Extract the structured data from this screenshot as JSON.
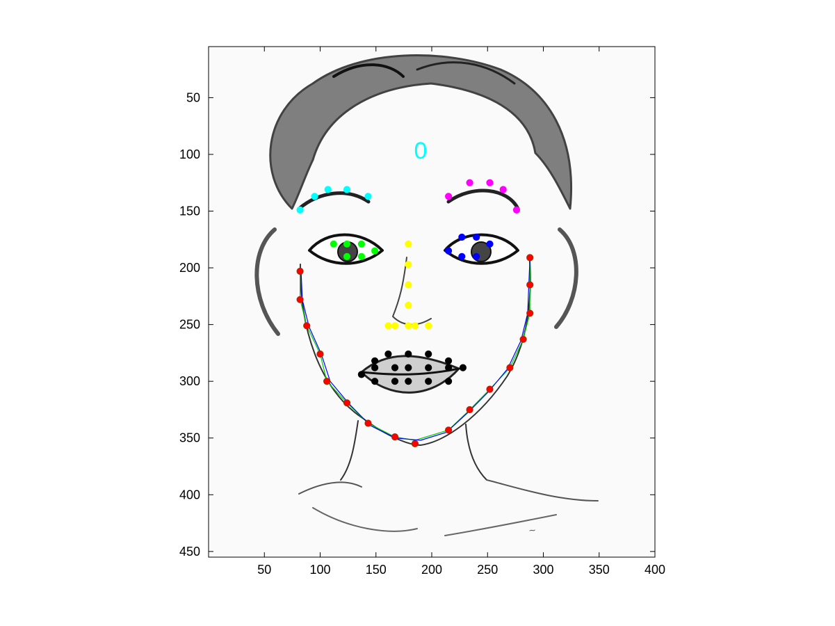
{
  "chart_data": {
    "type": "scatter",
    "title": "",
    "xlabel": "",
    "ylabel": "",
    "xlim": [
      0,
      400
    ],
    "ylim": [
      455,
      5
    ],
    "y_axis_reversed": true,
    "grid": false,
    "legend": "none",
    "background_image": "sketch-of-female-face-portrait",
    "x_ticks": [
      50,
      100,
      150,
      200,
      250,
      300,
      350,
      400
    ],
    "y_ticks": [
      50,
      100,
      150,
      200,
      250,
      300,
      350,
      400,
      450
    ],
    "annotations": [
      {
        "text": "0",
        "x": 190,
        "y": 97,
        "color": "#00ffff"
      }
    ],
    "series": [
      {
        "color": "#00ffff",
        "marker": "dot",
        "points": [
          [
            82,
            149
          ],
          [
            95,
            137
          ],
          [
            107,
            131
          ],
          [
            124,
            131
          ],
          [
            143,
            137
          ]
        ]
      },
      {
        "color": "#ff00ff",
        "marker": "dot",
        "points": [
          [
            215,
            137
          ],
          [
            234,
            125
          ],
          [
            252,
            125
          ],
          [
            264,
            131
          ],
          [
            276,
            149
          ]
        ]
      },
      {
        "color": "#00ff00",
        "marker": "dot",
        "points": [
          [
            112,
            179
          ],
          [
            124,
            179
          ],
          [
            137,
            179
          ],
          [
            149,
            185
          ],
          [
            137,
            190
          ],
          [
            124,
            190
          ]
        ]
      },
      {
        "color": "#0000ff",
        "marker": "dot",
        "points": [
          [
            215,
            185
          ],
          [
            227,
            173
          ],
          [
            240,
            173
          ],
          [
            252,
            179
          ],
          [
            240,
            190
          ],
          [
            227,
            190
          ]
        ]
      },
      {
        "color": "#ffff00",
        "marker": "dot",
        "points": [
          [
            179,
            179
          ],
          [
            179,
            197
          ],
          [
            179,
            215
          ],
          [
            179,
            233
          ],
          [
            161,
            251
          ],
          [
            167,
            251
          ],
          [
            179,
            251
          ],
          [
            185,
            251
          ],
          [
            197,
            251
          ]
        ]
      },
      {
        "color": "#000000",
        "marker": "dot",
        "points": [
          [
            137,
            294
          ],
          [
            149,
            282
          ],
          [
            161,
            276
          ],
          [
            179,
            276
          ],
          [
            197,
            276
          ],
          [
            215,
            282
          ],
          [
            228,
            288
          ],
          [
            215,
            300
          ],
          [
            197,
            300
          ],
          [
            179,
            300
          ],
          [
            167,
            300
          ],
          [
            149,
            300
          ],
          [
            149,
            288
          ],
          [
            167,
            288
          ],
          [
            179,
            288
          ],
          [
            197,
            288
          ],
          [
            215,
            288
          ]
        ]
      },
      {
        "color": "#ff0000",
        "marker": "dot",
        "points": [
          [
            82,
            203
          ],
          [
            82,
            228
          ],
          [
            88,
            251
          ],
          [
            100,
            276
          ],
          [
            106,
            300
          ],
          [
            124,
            319
          ],
          [
            143,
            337
          ],
          [
            167,
            349
          ],
          [
            185,
            355
          ],
          [
            215,
            343
          ],
          [
            234,
            325
          ],
          [
            252,
            307
          ],
          [
            270,
            288
          ],
          [
            282,
            263
          ],
          [
            288,
            240
          ],
          [
            288,
            215
          ],
          [
            288,
            191
          ]
        ]
      },
      {
        "color": "#00cc00",
        "marker": "line",
        "points": [
          [
            82,
            203
          ],
          [
            82,
            228
          ],
          [
            88,
            251
          ],
          [
            100,
            276
          ],
          [
            106,
            300
          ],
          [
            124,
            319
          ],
          [
            143,
            337
          ],
          [
            167,
            349
          ],
          [
            185,
            352
          ],
          [
            215,
            343
          ],
          [
            234,
            325
          ],
          [
            252,
            307
          ],
          [
            270,
            288
          ],
          [
            282,
            263
          ],
          [
            288,
            240
          ],
          [
            288,
            215
          ],
          [
            288,
            191
          ]
        ]
      },
      {
        "color": "#0000ff",
        "marker": "line",
        "points": [
          [
            83,
            205
          ],
          [
            84,
            228
          ],
          [
            90,
            252
          ],
          [
            101,
            276
          ],
          [
            109,
            300
          ],
          [
            126,
            320
          ],
          [
            145,
            339
          ],
          [
            167,
            350
          ],
          [
            190,
            352
          ],
          [
            213,
            345
          ],
          [
            233,
            327
          ],
          [
            251,
            309
          ],
          [
            268,
            289
          ],
          [
            280,
            264
          ],
          [
            286,
            240
          ],
          [
            287,
            215
          ],
          [
            288,
            192
          ]
        ]
      }
    ]
  }
}
